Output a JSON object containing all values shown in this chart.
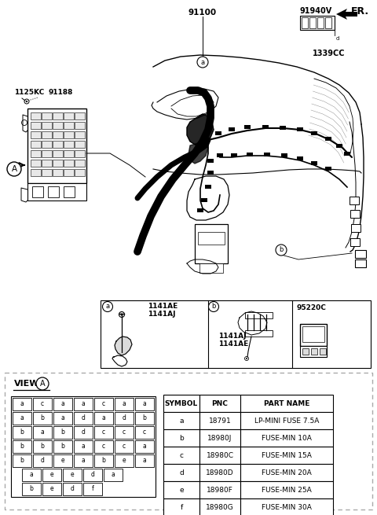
{
  "bg_color": "#ffffff",
  "title_fr": "FR.",
  "label_91100": "91100",
  "label_91940V": "91940V",
  "label_1339CC": "1339CC",
  "label_1125KC": "1125KC",
  "label_91188": "91188",
  "label_A": "A",
  "label_a": "a",
  "label_b": "b",
  "pnc_a1": "1141AE",
  "pnc_a2": "1141AJ",
  "pnc_b1": "1141AJ",
  "pnc_b2": "1141AE",
  "pnc_c": "95220C",
  "view_title": "VIEW",
  "table_headers": [
    "SYMBOL",
    "PNC",
    "PART NAME"
  ],
  "table_rows": [
    [
      "a",
      "18791",
      "LP-MINI FUSE 7.5A"
    ],
    [
      "b",
      "18980J",
      "FUSE-MIN 10A"
    ],
    [
      "c",
      "18980C",
      "FUSE-MIN 15A"
    ],
    [
      "d",
      "18980D",
      "FUSE-MIN 20A"
    ],
    [
      "e",
      "18980F",
      "FUSE-MIN 25A"
    ],
    [
      "f",
      "18980G",
      "FUSE-MIN 30A"
    ]
  ],
  "fuse_rows": [
    [
      "a",
      "c",
      "a",
      "a",
      "c",
      "a",
      "a"
    ],
    [
      "a",
      "b",
      "a",
      "d",
      "a",
      "d",
      "b"
    ],
    [
      "b",
      "a",
      "b",
      "d",
      "c",
      "c",
      "c"
    ],
    [
      "b",
      "b",
      "b",
      "a",
      "c",
      "c",
      "a"
    ],
    [
      "b",
      "d",
      "e",
      "a",
      "b",
      "e",
      "a"
    ],
    [
      "a",
      "e",
      "e",
      "d",
      "a"
    ],
    [
      "b",
      "e",
      "d",
      "f"
    ]
  ],
  "fuse_row_offsets": [
    0,
    0,
    0,
    0,
    0,
    1,
    1
  ]
}
